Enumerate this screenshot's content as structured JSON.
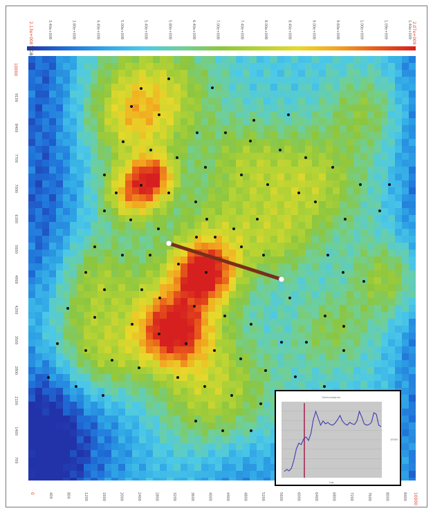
{
  "scale": {
    "label": "Scale",
    "min_label": "2.13e+008",
    "max_label": "2.07e+009",
    "tick_labels": [
      "3.40e+008",
      "3.80e+008",
      "4.40e+008",
      "5.00e+008",
      "5.40e+008",
      "5.80e+008",
      "6.40e+008",
      "7.00e+008",
      "7.40e+008",
      "8.00e+008",
      "8.40e+008",
      "9.00e+008",
      "9.60e+008",
      "1.00e+009",
      "1.09e+009",
      "1.40e+009"
    ],
    "colors": [
      "#2233aa",
      "#1f6ed8",
      "#2fa6e6",
      "#4cc9e8",
      "#6fcf9a",
      "#8cc63f",
      "#b6d334",
      "#e8d82a",
      "#f2a41f",
      "#e85a1a",
      "#d62020"
    ]
  },
  "y_axis": {
    "top_label": "10000",
    "tick_labels": [
      "9100",
      "8400",
      "7700",
      "7000",
      "6300",
      "5600",
      "4900",
      "4200",
      "3500",
      "2800",
      "2100",
      "1400",
      "700"
    ]
  },
  "x_axis": {
    "origin_label": "0",
    "end_label": "10000",
    "tick_labels": [
      "400",
      "800",
      "1200",
      "1600",
      "2000",
      "2400",
      "2800",
      "3200",
      "3600",
      "4000",
      "4400",
      "4800",
      "5200",
      "5600",
      "6000",
      "6400",
      "6800",
      "7200",
      "7600",
      "8000",
      "8400"
    ]
  },
  "inset": {
    "title": "Semivariogram",
    "right_label": "10000",
    "x_label": "Lag",
    "series_color": "#3a3ab0",
    "marker_color": "#a01040",
    "profile": [
      0.05,
      0.08,
      0.06,
      0.1,
      0.22,
      0.38,
      0.46,
      0.44,
      0.52,
      0.55,
      0.5,
      0.6,
      0.8,
      0.92,
      0.82,
      0.72,
      0.78,
      0.74,
      0.76,
      0.73,
      0.72,
      0.75,
      0.8,
      0.86,
      0.78,
      0.74,
      0.72,
      0.76,
      0.74,
      0.73,
      0.78,
      0.92,
      0.84,
      0.74,
      0.72,
      0.73,
      0.76,
      0.9,
      0.88,
      0.72,
      0.7
    ]
  },
  "transect": {
    "line_color": "#7a2e1a"
  }
}
